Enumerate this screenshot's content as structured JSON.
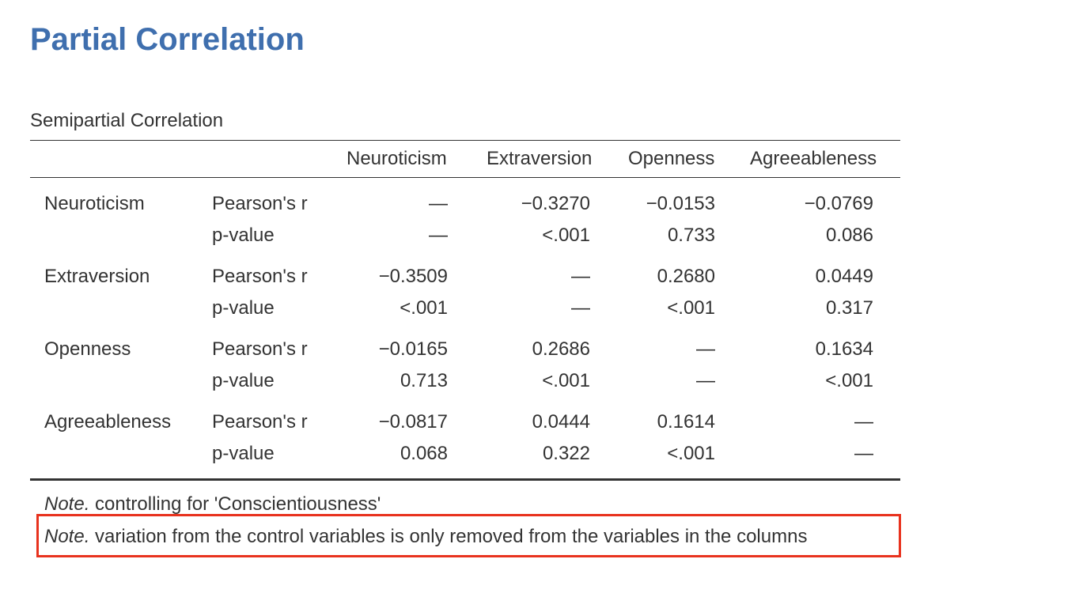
{
  "title": "Partial Correlation",
  "table": {
    "caption": "Semipartial Correlation",
    "columns": [
      "Neuroticism",
      "Extraversion",
      "Openness",
      "Agreeableness"
    ],
    "rows": [
      {
        "variable": "Neuroticism",
        "pearson_label": "Pearson's r",
        "pearson": [
          "—",
          "−0.3270",
          "−0.0153",
          "−0.0769"
        ],
        "p_label": "p-value",
        "p": [
          "—",
          "<.001",
          "0.733",
          "0.086"
        ]
      },
      {
        "variable": "Extraversion",
        "pearson_label": "Pearson's r",
        "pearson": [
          "−0.3509",
          "—",
          "0.2680",
          "0.0449"
        ],
        "p_label": "p-value",
        "p": [
          "<.001",
          "—",
          "<.001",
          "0.317"
        ]
      },
      {
        "variable": "Openness",
        "pearson_label": "Pearson's r",
        "pearson": [
          "−0.0165",
          "0.2686",
          "—",
          "0.1634"
        ],
        "p_label": "p-value",
        "p": [
          "0.713",
          "<.001",
          "—",
          "<.001"
        ]
      },
      {
        "variable": "Agreeableness",
        "pearson_label": "Pearson's r",
        "pearson": [
          "−0.0817",
          "0.0444",
          "0.1614",
          "—"
        ],
        "p_label": "p-value",
        "p": [
          "0.068",
          "0.322",
          "<.001",
          "—"
        ]
      }
    ]
  },
  "notes": [
    {
      "prefix": "Note.",
      "text": " controlling for 'Conscientiousness'"
    },
    {
      "prefix": "Note.",
      "text": " variation from the control variables is only removed from the variables in the columns"
    }
  ],
  "highlight_color": "#e8321e",
  "title_color": "#3f6fae"
}
